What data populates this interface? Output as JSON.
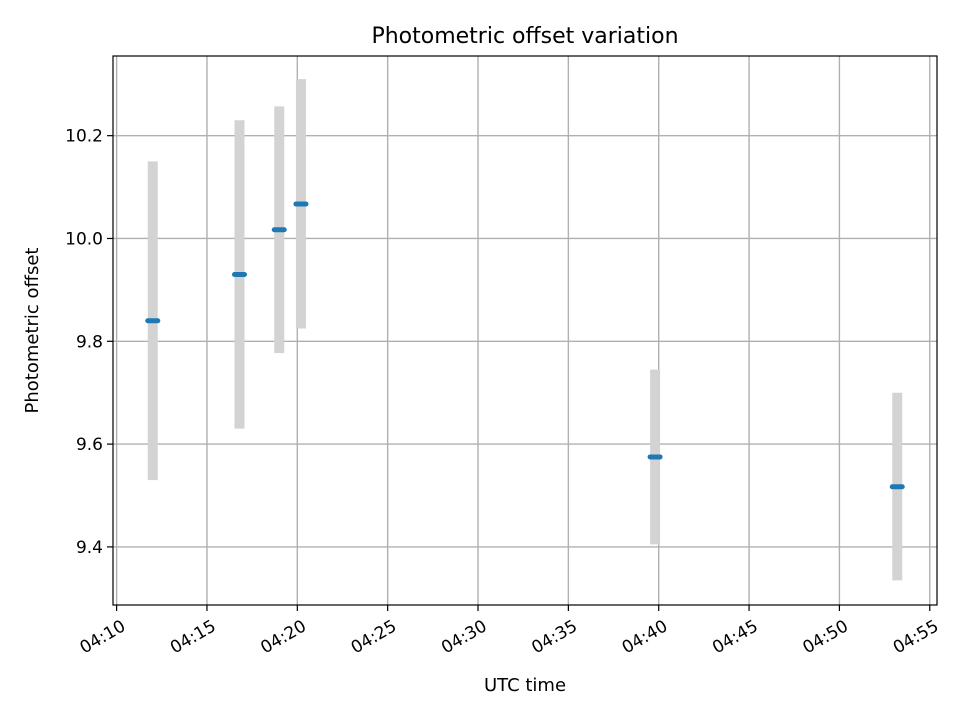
{
  "chart_data": {
    "type": "scatter",
    "title": "Photometric offset variation",
    "xlabel": "UTC time",
    "ylabel": "Photometric offset",
    "x_ticks": [
      "04:10",
      "04:15",
      "04:20",
      "04:25",
      "04:30",
      "04:35",
      "04:40",
      "04:45",
      "04:50",
      "04:55"
    ],
    "y_ticks": [
      "9.4",
      "9.6",
      "9.8",
      "10.0",
      "10.2"
    ],
    "xlim": [
      "04:09.8",
      "04:55.4"
    ],
    "ylim": [
      9.287,
      10.355
    ],
    "grid": true,
    "points": [
      {
        "x": "04:12",
        "y": 9.84,
        "err_low": 9.53,
        "err_high": 10.15
      },
      {
        "x": "04:16.8",
        "y": 9.93,
        "err_low": 9.63,
        "err_high": 10.23
      },
      {
        "x": "04:19",
        "y": 10.017,
        "err_low": 9.777,
        "err_high": 10.257
      },
      {
        "x": "04:20.2",
        "y": 10.067,
        "err_low": 9.825,
        "err_high": 10.31
      },
      {
        "x": "04:39.8",
        "y": 9.575,
        "err_low": 9.405,
        "err_high": 9.745
      },
      {
        "x": "04:53.2",
        "y": 9.517,
        "err_low": 9.335,
        "err_high": 9.7
      }
    ],
    "colors": {
      "point": "#1f77b4",
      "errorbar": "#d3d3d3",
      "grid": "#b0b0b0",
      "axes": "#000000"
    }
  }
}
